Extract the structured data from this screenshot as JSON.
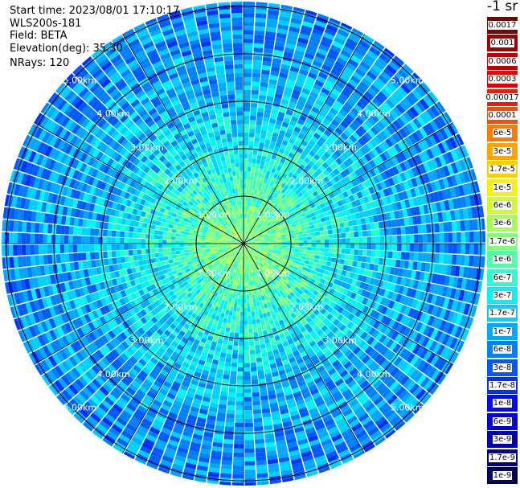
{
  "info": {
    "start_time": "Start time: 2023/08/01 17:10:17",
    "instrument": "WLS200s-181",
    "field": "Field: BETA",
    "elevation": "Elevation(deg): 35.30",
    "nrays": "NRays: 120"
  },
  "colorbar": {
    "unit": "-1 sr",
    "levels": [
      {
        "label": "0.0017",
        "color": "#7f0000"
      },
      {
        "label": "0.001",
        "color": "#a00000"
      },
      {
        "label": "0.0006",
        "color": "#c40000"
      },
      {
        "label": "0.0003",
        "color": "#e80000"
      },
      {
        "label": "0.00017",
        "color": "#ff1500"
      },
      {
        "label": "0.0001",
        "color": "#ff4a00"
      },
      {
        "label": "6e-5",
        "color": "#ff7a00"
      },
      {
        "label": "3e-5",
        "color": "#ffa400"
      },
      {
        "label": "1.7e-5",
        "color": "#ffd000"
      },
      {
        "label": "1e-5",
        "color": "#f7f400"
      },
      {
        "label": "6e-6",
        "color": "#d0ff26"
      },
      {
        "label": "3e-6",
        "color": "#a6ff50"
      },
      {
        "label": "1.7e-6",
        "color": "#7dff7a"
      },
      {
        "label": "1e-6",
        "color": "#50ffa6"
      },
      {
        "label": "6e-7",
        "color": "#26ffd0"
      },
      {
        "label": "3e-7",
        "color": "#00f4f8"
      },
      {
        "label": "1.7e-7",
        "color": "#00d0ff"
      },
      {
        "label": "1e-7",
        "color": "#00a8ff"
      },
      {
        "label": "6e-8",
        "color": "#0080ff"
      },
      {
        "label": "3e-8",
        "color": "#0058ff"
      },
      {
        "label": "1.7e-8",
        "color": "#0030ff"
      },
      {
        "label": "1e-8",
        "color": "#0008ff"
      },
      {
        "label": "6e-9",
        "color": "#0000d8"
      },
      {
        "label": "3e-9",
        "color": "#0000b0"
      },
      {
        "label": "1.7e-9",
        "color": "#000088"
      },
      {
        "label": "1e-9",
        "color": "#000060"
      }
    ]
  },
  "chart_data": {
    "type": "heatmap",
    "projection": "polar (PPI scan)",
    "field": "BETA",
    "n_rays": 120,
    "range_unit": "km",
    "max_range_km": 5.1,
    "range_rings_km": [
      1.0,
      2.0,
      3.0,
      4.0,
      5.0
    ],
    "range_labels": [
      "1.00km",
      "2.00km",
      "3.00km",
      "4.00km",
      "5.00km"
    ],
    "azimuth_spokes_deg": [
      0,
      30,
      60,
      90,
      120,
      150,
      180,
      210,
      240,
      270,
      300,
      330
    ],
    "value_scale": "log",
    "value_range": [
      1e-09,
      0.0017
    ],
    "range_profile": [
      {
        "range_km": 0.25,
        "beta": 1.7e-06
      },
      {
        "range_km": 0.75,
        "beta": 1.2e-06
      },
      {
        "range_km": 1.25,
        "beta": 7e-07
      },
      {
        "range_km": 1.75,
        "beta": 4e-07
      },
      {
        "range_km": 2.25,
        "beta": 2.5e-07
      },
      {
        "range_km": 2.75,
        "beta": 1.6e-07
      },
      {
        "range_km": 3.25,
        "beta": 1.1e-07
      },
      {
        "range_km": 3.75,
        "beta": 9e-08
      },
      {
        "range_km": 4.25,
        "beta": 8e-08
      },
      {
        "range_km": 4.75,
        "beta": 7e-08
      },
      {
        "range_km": 5.05,
        "beta": 6e-08
      }
    ]
  }
}
